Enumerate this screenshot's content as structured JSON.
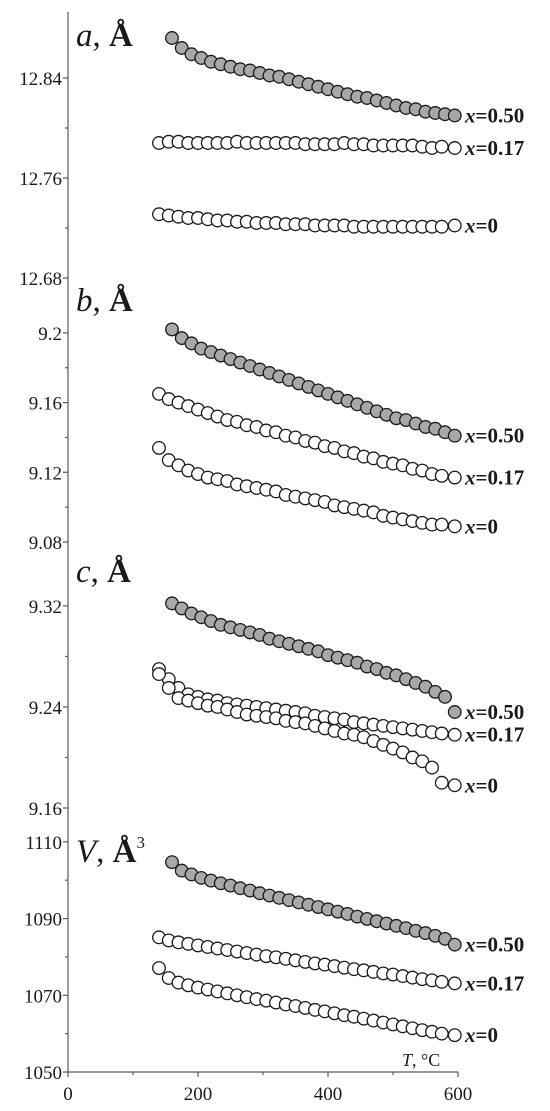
{
  "chart_data": [
    {
      "type": "scatter",
      "title_var": "a",
      "title_unit": "Å",
      "title_sup": "",
      "ylim": [
        12.68,
        12.88
      ],
      "yticks": [
        "12.84",
        "12.76",
        "12.68"
      ],
      "ytick_values": [
        12.84,
        12.76,
        12.68
      ],
      "xlim": [
        0,
        600
      ],
      "series": [
        {
          "name": "x=0.50",
          "x_var": "x",
          "x_val": "=0.50",
          "fill": "#a8a8a8",
          "x": [
            160,
            175,
            190,
            205,
            220,
            235,
            250,
            265,
            280,
            295,
            310,
            325,
            340,
            355,
            370,
            385,
            400,
            415,
            430,
            445,
            460,
            475,
            490,
            505,
            520,
            535,
            550,
            565,
            580,
            595
          ],
          "y": [
            12.872,
            12.864,
            12.859,
            12.856,
            12.853,
            12.851,
            12.849,
            12.847,
            12.846,
            12.844,
            12.842,
            12.841,
            12.839,
            12.837,
            12.835,
            12.833,
            12.831,
            12.829,
            12.827,
            12.825,
            12.824,
            12.822,
            12.82,
            12.818,
            12.816,
            12.815,
            12.813,
            12.812,
            12.811,
            12.81
          ]
        },
        {
          "name": "x=0.17",
          "x_var": "x",
          "x_val": "=0.17",
          "fill": "#ffffff",
          "x": [
            140,
            155,
            170,
            185,
            200,
            215,
            230,
            245,
            260,
            275,
            290,
            305,
            320,
            335,
            350,
            365,
            380,
            395,
            410,
            425,
            440,
            455,
            470,
            485,
            500,
            515,
            530,
            545,
            560,
            575,
            595
          ],
          "y": [
            12.788,
            12.789,
            12.789,
            12.788,
            12.788,
            12.788,
            12.788,
            12.788,
            12.789,
            12.788,
            12.788,
            12.788,
            12.788,
            12.788,
            12.788,
            12.787,
            12.787,
            12.787,
            12.787,
            12.788,
            12.787,
            12.787,
            12.786,
            12.786,
            12.786,
            12.786,
            12.786,
            12.785,
            12.784,
            12.785,
            12.784
          ]
        },
        {
          "name": "x=0",
          "x_var": "x",
          "x_val": "=0",
          "fill": "#ffffff",
          "x": [
            140,
            155,
            170,
            185,
            200,
            215,
            230,
            245,
            260,
            275,
            290,
            305,
            320,
            335,
            350,
            365,
            380,
            395,
            410,
            425,
            440,
            455,
            470,
            485,
            500,
            515,
            530,
            545,
            560,
            575,
            595
          ],
          "y": [
            12.731,
            12.73,
            12.729,
            12.728,
            12.728,
            12.727,
            12.726,
            12.726,
            12.725,
            12.725,
            12.724,
            12.724,
            12.724,
            12.723,
            12.723,
            12.723,
            12.722,
            12.722,
            12.722,
            12.722,
            12.721,
            12.721,
            12.721,
            12.721,
            12.721,
            12.721,
            12.721,
            12.721,
            12.721,
            12.721,
            12.722
          ]
        }
      ]
    },
    {
      "type": "scatter",
      "title_var": "b",
      "title_unit": "Å",
      "title_sup": "",
      "ylim": [
        9.08,
        9.212
      ],
      "yticks": [
        "9.2",
        "9.16",
        "9.12",
        "9.08"
      ],
      "ytick_values": [
        9.2,
        9.16,
        9.12,
        9.08
      ],
      "xlim": [
        0,
        600
      ],
      "series": [
        {
          "name": "x=0.50",
          "x_var": "x",
          "x_val": "=0.50",
          "fill": "#a8a8a8",
          "x": [
            160,
            175,
            190,
            205,
            220,
            235,
            250,
            265,
            280,
            295,
            310,
            325,
            340,
            355,
            370,
            385,
            400,
            415,
            430,
            445,
            460,
            475,
            490,
            505,
            520,
            535,
            550,
            565,
            580,
            595
          ],
          "y": [
            9.202,
            9.197,
            9.194,
            9.191,
            9.189,
            9.187,
            9.185,
            9.183,
            9.181,
            9.179,
            9.177,
            9.175,
            9.173,
            9.171,
            9.169,
            9.167,
            9.165,
            9.163,
            9.161,
            9.159,
            9.157,
            9.155,
            9.153,
            9.151,
            9.15,
            9.148,
            9.146,
            9.145,
            9.143,
            9.141
          ]
        },
        {
          "name": "x=0.17",
          "x_var": "x",
          "x_val": "=0.17",
          "fill": "#ffffff",
          "x": [
            140,
            155,
            170,
            185,
            200,
            215,
            230,
            245,
            260,
            275,
            290,
            305,
            320,
            335,
            350,
            365,
            380,
            395,
            410,
            425,
            440,
            455,
            470,
            485,
            500,
            515,
            530,
            545,
            560,
            575,
            595
          ],
          "y": [
            9.165,
            9.162,
            9.16,
            9.158,
            9.156,
            9.154,
            9.152,
            9.15,
            9.149,
            9.147,
            9.146,
            9.144,
            9.143,
            9.141,
            9.14,
            9.138,
            9.137,
            9.135,
            9.134,
            9.132,
            9.131,
            9.129,
            9.128,
            9.126,
            9.125,
            9.124,
            9.122,
            9.121,
            9.119,
            9.118,
            9.117
          ]
        },
        {
          "name": "x=0",
          "x_var": "x",
          "x_val": "=0",
          "fill": "#ffffff",
          "x": [
            140,
            155,
            170,
            185,
            200,
            215,
            230,
            245,
            260,
            275,
            290,
            305,
            320,
            335,
            350,
            365,
            380,
            395,
            410,
            425,
            440,
            455,
            470,
            485,
            500,
            515,
            530,
            545,
            560,
            575,
            595
          ],
          "y": [
            9.134,
            9.127,
            9.124,
            9.121,
            9.119,
            9.117,
            9.116,
            9.115,
            9.113,
            9.112,
            9.111,
            9.11,
            9.109,
            9.107,
            9.106,
            9.105,
            9.104,
            9.103,
            9.101,
            9.1,
            9.099,
            9.098,
            9.097,
            9.095,
            9.094,
            9.093,
            9.092,
            9.091,
            9.09,
            9.09,
            9.089
          ]
        }
      ]
    },
    {
      "type": "scatter",
      "title_var": "c",
      "title_unit": "Å",
      "title_sup": "",
      "ylim": [
        9.16,
        9.35
      ],
      "yticks": [
        "9.32",
        "9.24",
        "9.16"
      ],
      "ytick_values": [
        9.32,
        9.24,
        9.16
      ],
      "xlim": [
        0,
        600
      ],
      "series": [
        {
          "name": "x=0.50",
          "x_var": "x",
          "x_val": "=0.50",
          "fill": "#a8a8a8",
          "x": [
            160,
            175,
            190,
            205,
            220,
            235,
            250,
            265,
            280,
            295,
            310,
            325,
            340,
            355,
            370,
            385,
            400,
            415,
            430,
            445,
            460,
            475,
            490,
            505,
            520,
            535,
            550,
            565,
            580,
            595
          ],
          "y": [
            9.322,
            9.318,
            9.314,
            9.311,
            9.308,
            9.305,
            9.303,
            9.301,
            9.299,
            9.297,
            9.294,
            9.292,
            9.29,
            9.288,
            9.286,
            9.284,
            9.281,
            9.279,
            9.277,
            9.275,
            9.272,
            9.27,
            9.267,
            9.265,
            9.262,
            9.259,
            9.256,
            9.252,
            9.248,
            9.236
          ]
        },
        {
          "name": "x=0.17",
          "x_var": "x",
          "x_val": "=0.17",
          "fill": "#ffffff",
          "x": [
            140,
            155,
            170,
            185,
            200,
            215,
            230,
            245,
            260,
            275,
            290,
            305,
            320,
            335,
            350,
            365,
            380,
            395,
            410,
            425,
            440,
            455,
            470,
            485,
            500,
            515,
            530,
            545,
            560,
            575,
            595
          ],
          "y": [
            9.27,
            9.262,
            9.255,
            9.25,
            9.248,
            9.246,
            9.245,
            9.243,
            9.242,
            9.241,
            9.24,
            9.239,
            9.238,
            9.237,
            9.236,
            9.235,
            9.233,
            9.232,
            9.231,
            9.23,
            9.228,
            9.227,
            9.226,
            9.225,
            9.224,
            9.223,
            9.222,
            9.221,
            9.22,
            9.219,
            9.218
          ]
        },
        {
          "name": "x=0",
          "x_var": "x",
          "x_val": "=0",
          "fill": "#ffffff",
          "x": [
            140,
            155,
            170,
            185,
            200,
            215,
            230,
            245,
            260,
            275,
            290,
            305,
            320,
            335,
            350,
            365,
            380,
            395,
            410,
            425,
            440,
            455,
            470,
            485,
            500,
            515,
            530,
            545,
            560,
            575,
            595
          ],
          "y": [
            9.266,
            9.255,
            9.247,
            9.245,
            9.243,
            9.241,
            9.24,
            9.238,
            9.236,
            9.234,
            9.233,
            9.232,
            9.231,
            9.229,
            9.228,
            9.227,
            9.225,
            9.223,
            9.221,
            9.219,
            9.218,
            9.216,
            9.213,
            9.21,
            9.207,
            9.204,
            9.2,
            9.197,
            9.192,
            9.18,
            9.178
          ]
        }
      ]
    },
    {
      "type": "scatter",
      "title_var": "V",
      "title_unit": "Å",
      "title_sup": "3",
      "ylim": [
        1050,
        1111
      ],
      "yticks": [
        "1110",
        "1090",
        "1070",
        "1050"
      ],
      "ytick_values": [
        1110,
        1090,
        1070,
        1050
      ],
      "xlim": [
        0,
        600
      ],
      "xticks": [
        "0",
        "200",
        "400",
        "600"
      ],
      "xtick_values": [
        0,
        200,
        400,
        600
      ],
      "xlabel_var": "T",
      "xlabel_unit": ", °C",
      "series": [
        {
          "name": "x=0.50",
          "x_var": "x",
          "x_val": "=0.50",
          "fill": "#a8a8a8",
          "x": [
            160,
            175,
            190,
            205,
            220,
            235,
            250,
            265,
            280,
            295,
            310,
            325,
            340,
            355,
            370,
            385,
            400,
            415,
            430,
            445,
            460,
            475,
            490,
            505,
            520,
            535,
            550,
            565,
            580,
            595
          ],
          "y": [
            1104.7,
            1102.5,
            1101.5,
            1100.6,
            1099.9,
            1099.2,
            1098.6,
            1097.9,
            1097.3,
            1096.6,
            1096.0,
            1095.4,
            1094.8,
            1094.2,
            1093.6,
            1093.0,
            1092.4,
            1091.8,
            1091.2,
            1090.5,
            1089.9,
            1089.3,
            1088.7,
            1088.1,
            1087.5,
            1086.8,
            1086.2,
            1085.5,
            1084.7,
            1083.2
          ]
        },
        {
          "name": "x=0.17",
          "x_var": "x",
          "x_val": "=0.17",
          "fill": "#ffffff",
          "x": [
            140,
            155,
            170,
            185,
            200,
            215,
            230,
            245,
            260,
            275,
            290,
            305,
            320,
            335,
            350,
            365,
            380,
            395,
            410,
            425,
            440,
            455,
            470,
            485,
            500,
            515,
            530,
            545,
            560,
            575,
            595
          ],
          "y": [
            1085.1,
            1084.3,
            1083.8,
            1083.4,
            1083.0,
            1082.6,
            1082.2,
            1081.8,
            1081.4,
            1081.0,
            1080.6,
            1080.2,
            1079.9,
            1079.5,
            1079.1,
            1078.7,
            1078.3,
            1078.0,
            1077.6,
            1077.2,
            1076.8,
            1076.5,
            1076.1,
            1075.7,
            1075.4,
            1075.0,
            1074.6,
            1074.2,
            1073.9,
            1073.5,
            1073.1
          ]
        },
        {
          "name": "x=0",
          "x_var": "x",
          "x_val": "=0",
          "fill": "#ffffff",
          "x": [
            140,
            155,
            170,
            185,
            200,
            215,
            230,
            245,
            260,
            275,
            290,
            305,
            320,
            335,
            350,
            365,
            380,
            395,
            410,
            425,
            440,
            455,
            470,
            485,
            500,
            515,
            530,
            545,
            560,
            575,
            595
          ],
          "y": [
            1077.1,
            1074.5,
            1073.3,
            1072.6,
            1072.0,
            1071.5,
            1071.0,
            1070.5,
            1070.0,
            1069.5,
            1069.0,
            1068.6,
            1068.1,
            1067.6,
            1067.2,
            1066.7,
            1066.2,
            1065.8,
            1065.3,
            1064.8,
            1064.4,
            1063.9,
            1063.4,
            1062.9,
            1062.4,
            1061.9,
            1061.4,
            1060.9,
            1060.5,
            1060.0,
            1059.6
          ]
        }
      ]
    }
  ]
}
